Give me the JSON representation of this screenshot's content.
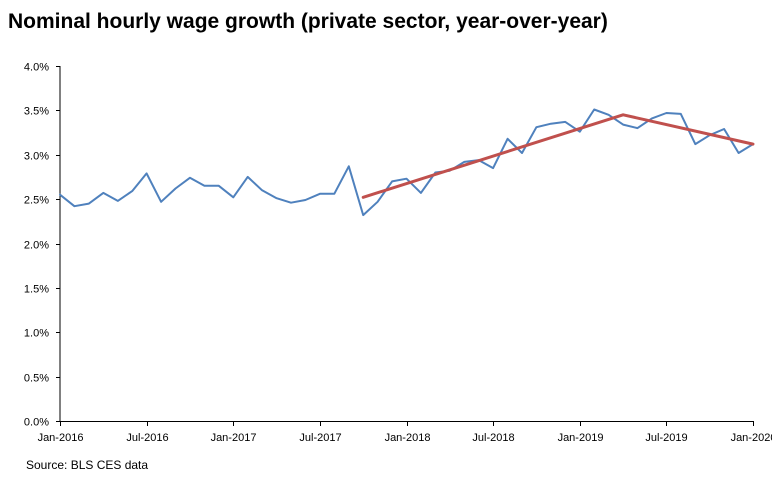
{
  "chart_data": {
    "type": "line",
    "title": "Nominal hourly wage growth (private sector, year-over-year)",
    "source": "Source: BLS CES data",
    "xlabel": "",
    "ylabel": "",
    "ylim": [
      0,
      0.04
    ],
    "y_ticks": [
      0,
      0.005,
      0.01,
      0.015,
      0.02,
      0.025,
      0.03,
      0.035,
      0.04
    ],
    "y_tick_labels": [
      "0.0%",
      "0.5%",
      "1.0%",
      "1.5%",
      "2.0%",
      "2.5%",
      "3.0%",
      "3.5%",
      "4.0%"
    ],
    "x_start": "Jan-2016",
    "x_end": "Jan-2020",
    "x_tick_labels": [
      "Jan-2016",
      "Jul-2016",
      "Jan-2017",
      "Jul-2017",
      "Jan-2018",
      "Jul-2018",
      "Jan-2019",
      "Jul-2019",
      "Jan-2020"
    ],
    "grid": false,
    "colors": {
      "series": "#4f81bd",
      "trend": "#c0504d",
      "axis": "#000000"
    },
    "series": [
      {
        "x": [
          "Jan-2016",
          "Feb-2016",
          "Mar-2016",
          "Apr-2016",
          "May-2016",
          "Jun-2016",
          "Jul-2016",
          "Aug-2016",
          "Sep-2016",
          "Oct-2016",
          "Nov-2016",
          "Dec-2016",
          "Jan-2017",
          "Feb-2017",
          "Mar-2017",
          "Apr-2017",
          "May-2017",
          "Jun-2017",
          "Jul-2017",
          "Aug-2017",
          "Sep-2017",
          "Oct-2017",
          "Nov-2017",
          "Dec-2017",
          "Jan-2018",
          "Feb-2018",
          "Mar-2018",
          "Apr-2018",
          "May-2018",
          "Jun-2018",
          "Jul-2018",
          "Aug-2018",
          "Sep-2018",
          "Oct-2018",
          "Nov-2018",
          "Dec-2018",
          "Jan-2019",
          "Feb-2019",
          "Mar-2019",
          "Apr-2019",
          "May-2019",
          "Jun-2019",
          "Jul-2019",
          "Aug-2019",
          "Sep-2019",
          "Oct-2019",
          "Nov-2019",
          "Dec-2019",
          "Jan-2020"
        ],
        "values": [
          0.0255,
          0.0242,
          0.0245,
          0.0257,
          0.0248,
          0.0259,
          0.0279,
          0.0247,
          0.0262,
          0.0274,
          0.0265,
          0.0265,
          0.0252,
          0.0275,
          0.026,
          0.0251,
          0.0246,
          0.0249,
          0.0256,
          0.0256,
          0.0287,
          0.0232,
          0.0247,
          0.027,
          0.0273,
          0.0257,
          0.028,
          0.0282,
          0.0292,
          0.0294,
          0.0285,
          0.0318,
          0.0302,
          0.0331,
          0.0335,
          0.0337,
          0.0326,
          0.0351,
          0.0345,
          0.0334,
          0.033,
          0.0341,
          0.0347,
          0.0346,
          0.0312,
          0.0322,
          0.0329,
          0.0302,
          0.0312
        ]
      },
      {
        "x": [
          "Oct-2017",
          "Apr-2019",
          "Jan-2020"
        ],
        "values": [
          0.0252,
          0.0345,
          0.0312
        ]
      }
    ]
  }
}
